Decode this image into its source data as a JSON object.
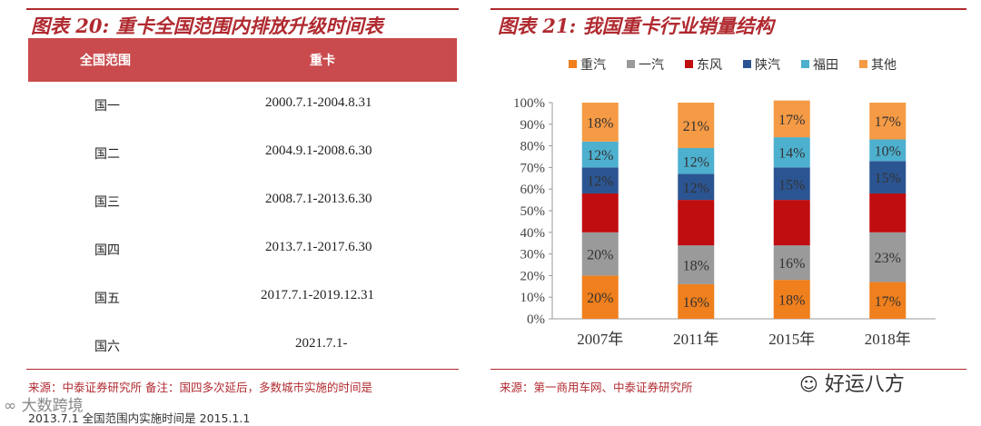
{
  "left": {
    "title": "图表 20:  重卡全国范围内排放升级时间表",
    "headers": [
      "全国范围",
      "重卡"
    ],
    "rows": [
      {
        "scope": "国一",
        "range": "2000.7.1-2004.8.31"
      },
      {
        "scope": "国二",
        "range": "2004.9.1-2008.6.30"
      },
      {
        "scope": "国三",
        "range": "2008.7.1-2013.6.30"
      },
      {
        "scope": "国四",
        "range": "2013.7.1-2017.6.30"
      },
      {
        "scope": "国五",
        "range": "2017.7.1-2019.12.31"
      },
      {
        "scope": "国六",
        "range": "2021.7.1-"
      }
    ],
    "source_line1": "来源：中泰证券研究所  备注：国四多次延后，多数城市实施的时间是",
    "source_line2": "2013.7.1 全国范围内实施时间是 2015.1.1"
  },
  "right": {
    "title": "图表 21:  我国重卡行业销量结构",
    "source": "来源：第一商用车网、中泰证券研究所"
  },
  "watermark_right": "好运八方",
  "watermark_left": "大数跨境",
  "colors": {
    "accent": "#b02a30",
    "header_bg": "#c94b4e"
  },
  "chart_data": {
    "type": "bar",
    "stacked": true,
    "percent": true,
    "categories": [
      "2007年",
      "2011年",
      "2015年",
      "2018年"
    ],
    "series": [
      {
        "name": "重汽",
        "color": "#f07f1d",
        "values": [
          20,
          16,
          18,
          17
        ]
      },
      {
        "name": "一汽",
        "color": "#9a9a9a",
        "values": [
          20,
          18,
          16,
          23
        ]
      },
      {
        "name": "东风",
        "color": "#c00d10",
        "values": [
          18,
          21,
          21,
          18
        ]
      },
      {
        "name": "陕汽",
        "color": "#2b5592",
        "values": [
          12,
          12,
          15,
          15
        ]
      },
      {
        "name": "福田",
        "color": "#4db0cf",
        "values": [
          12,
          12,
          14,
          10
        ]
      },
      {
        "name": "其他",
        "color": "#f59a45",
        "values": [
          18,
          21,
          17,
          17
        ]
      }
    ],
    "labels": [
      [
        "20%",
        "20%",
        "",
        "12%",
        "12%",
        "18%"
      ],
      [
        "16%",
        "18%",
        "",
        "12%",
        "12%",
        "21%"
      ],
      [
        "18%",
        "16%",
        "",
        "15%",
        "14%",
        "17%"
      ],
      [
        "17%",
        "23%",
        "",
        "15%",
        "10%",
        "17%"
      ]
    ],
    "yticks": [
      "0%",
      "10%",
      "20%",
      "30%",
      "40%",
      "50%",
      "60%",
      "70%",
      "80%",
      "90%",
      "100%"
    ],
    "ylim": [
      0,
      100
    ]
  }
}
